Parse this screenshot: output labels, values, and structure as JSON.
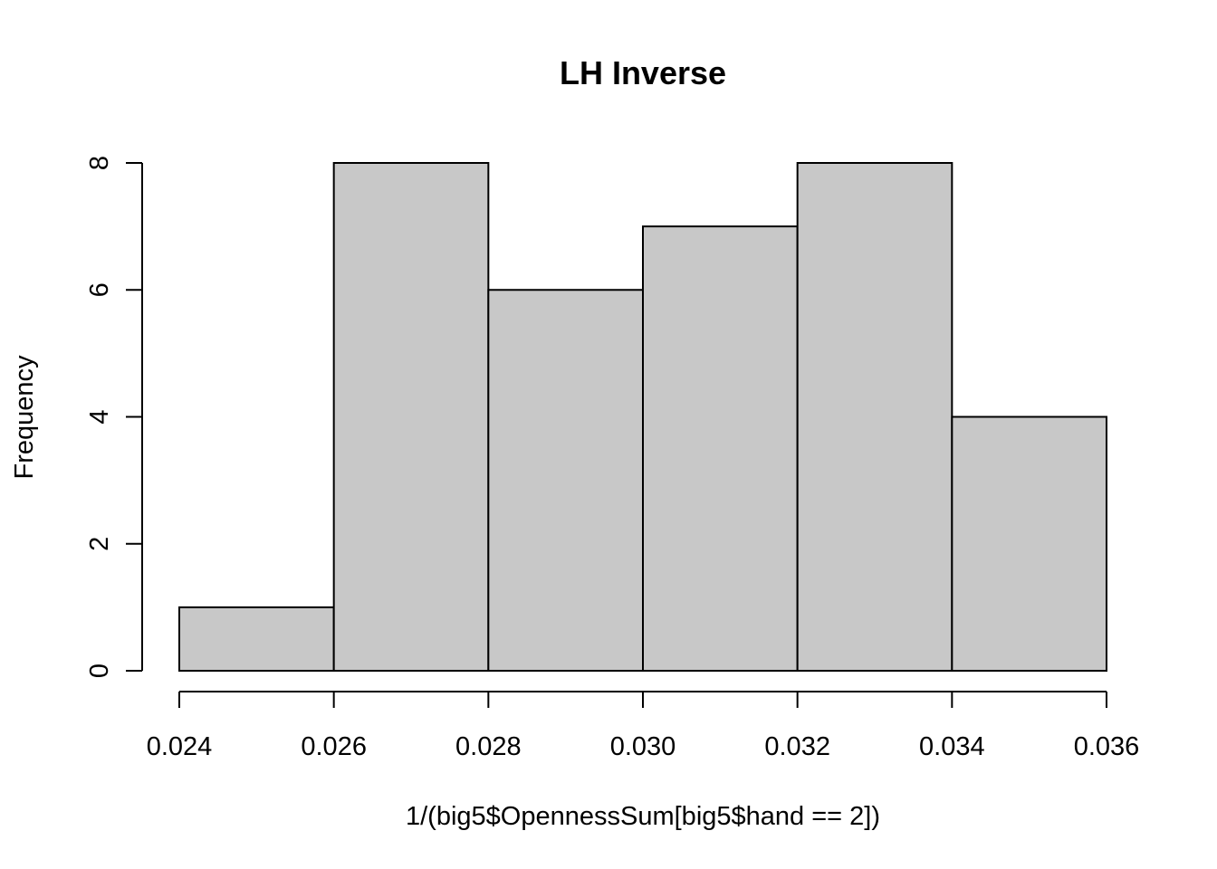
{
  "chart_data": {
    "type": "bar",
    "title": "LH Inverse",
    "xlabel": "1/(big5$OpennessSum[big5$hand == 2])",
    "ylabel": "Frequency",
    "bins": [
      {
        "from": 0.024,
        "to": 0.026,
        "count": 1
      },
      {
        "from": 0.026,
        "to": 0.028,
        "count": 8
      },
      {
        "from": 0.028,
        "to": 0.03,
        "count": 6
      },
      {
        "from": 0.03,
        "to": 0.032,
        "count": 7
      },
      {
        "from": 0.032,
        "to": 0.034,
        "count": 8
      },
      {
        "from": 0.034,
        "to": 0.036,
        "count": 4
      }
    ],
    "xlim": [
      0.024,
      0.036
    ],
    "ylim": [
      0,
      8
    ],
    "x_ticks": [
      "0.024",
      "0.026",
      "0.028",
      "0.030",
      "0.032",
      "0.034",
      "0.036"
    ],
    "y_ticks": [
      "0",
      "2",
      "4",
      "6",
      "8"
    ],
    "grid": false,
    "colors": {
      "bar_fill": "#c8c8c8",
      "bar_stroke": "#000000"
    }
  }
}
